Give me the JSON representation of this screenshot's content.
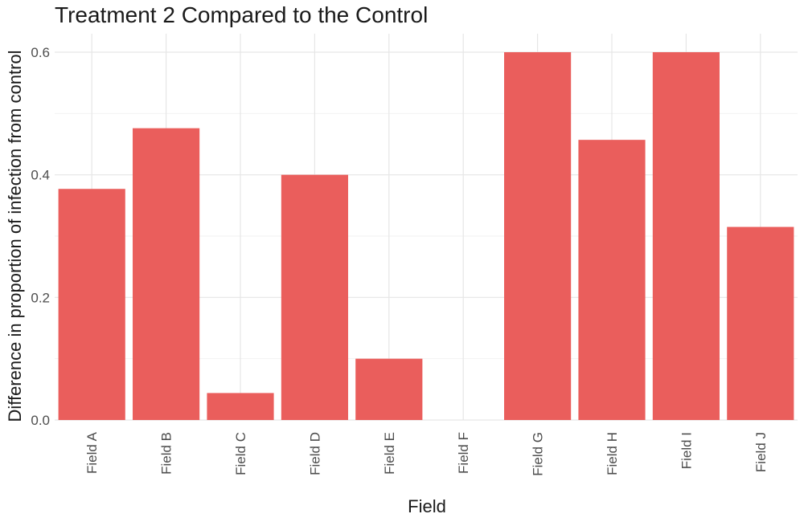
{
  "chart_data": {
    "type": "bar",
    "title": "Treatment 2 Compared to the Control",
    "xlabel": "Field",
    "ylabel": "Difference in proportion of infection from control",
    "categories": [
      "Field A",
      "Field B",
      "Field C",
      "Field D",
      "Field E",
      "Field F",
      "Field G",
      "Field H",
      "Field I",
      "Field J"
    ],
    "values": [
      0.377,
      0.476,
      0.044,
      0.4,
      0.1,
      0.0,
      0.6,
      0.457,
      0.6,
      0.315
    ],
    "ylim": [
      0,
      0.6
    ],
    "yticks": [
      0.0,
      0.2,
      0.4,
      0.6
    ],
    "ytick_labels": [
      "0.0",
      "0.2",
      "0.4",
      "0.6"
    ],
    "grid": true,
    "legend": "none",
    "bar_color": "#EA5E5C"
  }
}
